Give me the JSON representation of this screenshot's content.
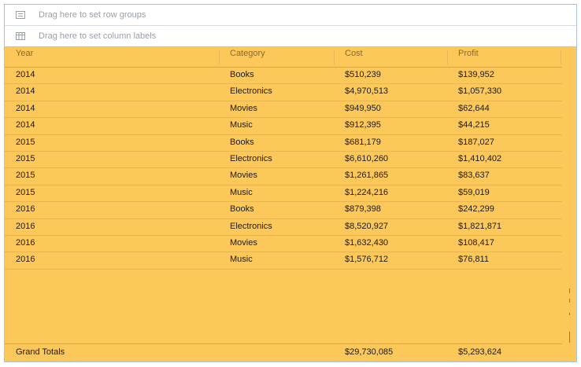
{
  "drop_zones": {
    "row_groups": "Drag here to set row groups",
    "column_labels": "Drag here to set column labels"
  },
  "columns": [
    "Year",
    "Category",
    "Cost",
    "Profit"
  ],
  "rows": [
    {
      "year": "2014",
      "category": "Books",
      "cost": "$510,239",
      "profit": "$139,952"
    },
    {
      "year": "2014",
      "category": "Electronics",
      "cost": "$4,970,513",
      "profit": "$1,057,330"
    },
    {
      "year": "2014",
      "category": "Movies",
      "cost": "$949,950",
      "profit": "$62,644"
    },
    {
      "year": "2014",
      "category": "Music",
      "cost": "$912,395",
      "profit": "$44,215"
    },
    {
      "year": "2015",
      "category": "Books",
      "cost": "$681,179",
      "profit": "$187,027"
    },
    {
      "year": "2015",
      "category": "Electronics",
      "cost": "$6,610,260",
      "profit": "$1,410,402"
    },
    {
      "year": "2015",
      "category": "Movies",
      "cost": "$1,261,865",
      "profit": "$83,637"
    },
    {
      "year": "2015",
      "category": "Music",
      "cost": "$1,224,216",
      "profit": "$59,019"
    },
    {
      "year": "2016",
      "category": "Books",
      "cost": "$879,398",
      "profit": "$242,299"
    },
    {
      "year": "2016",
      "category": "Electronics",
      "cost": "$8,520,927",
      "profit": "$1,821,871"
    },
    {
      "year": "2016",
      "category": "Movies",
      "cost": "$1,632,430",
      "profit": "$108,417"
    },
    {
      "year": "2016",
      "category": "Music",
      "cost": "$1,576,712",
      "profit": "$76,811"
    }
  ],
  "totals": {
    "label": "Grand Totals",
    "category": "",
    "cost": "$29,730,085",
    "profit": "$5,293,624"
  },
  "colors": {
    "grid_background": "#fdc85a",
    "drop_zone_background": "#ffffff",
    "frame_border": "#a9c1d9"
  },
  "icons": {
    "row_groups": "row-groups-icon",
    "column_labels": "column-labels-icon"
  }
}
